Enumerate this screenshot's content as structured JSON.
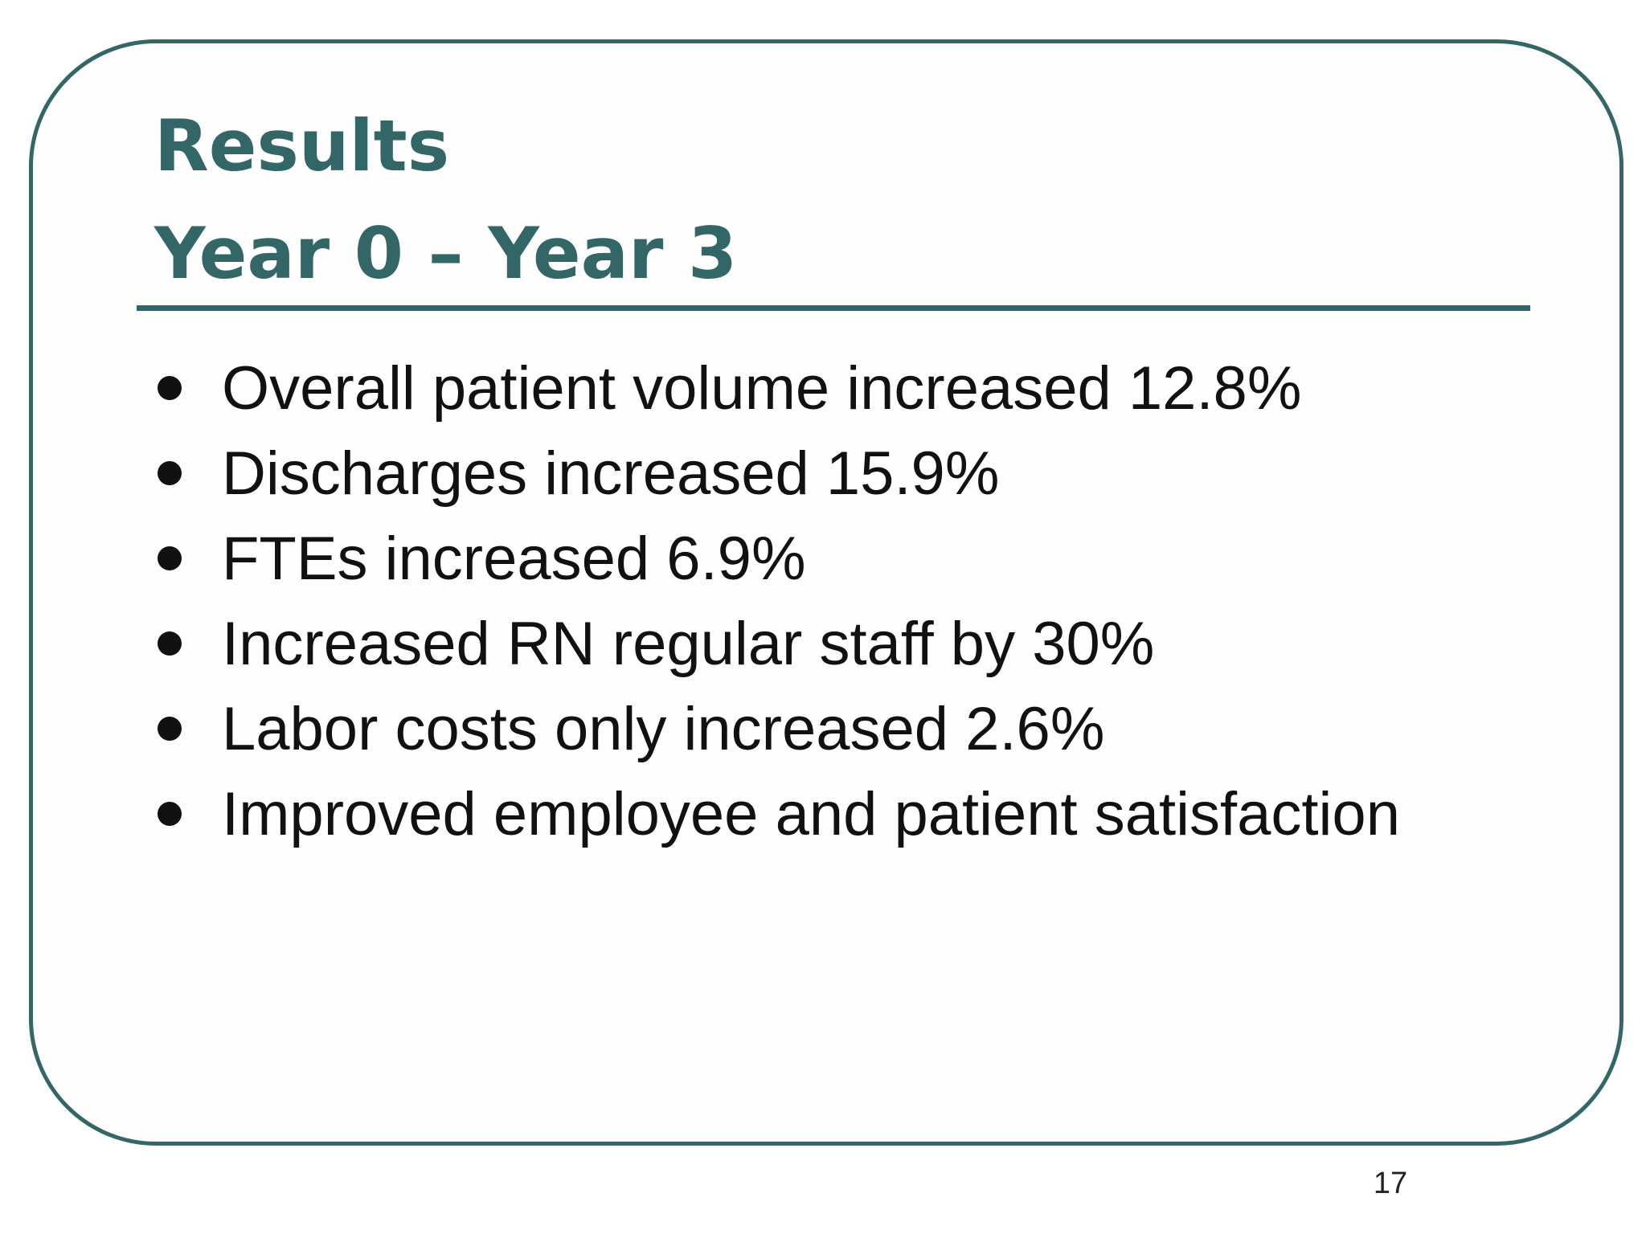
{
  "slide": {
    "title_line1": "Results",
    "title_line2": "Year 0 – Year 3",
    "bullets": [
      "Overall patient volume increased 12.8%",
      "Discharges increased 15.9%",
      "FTEs increased 6.9%",
      "Increased RN regular staff by 30%",
      "Labor costs only increased 2.6%",
      "Improved employee and patient satisfaction"
    ],
    "page_number": "17"
  },
  "colors": {
    "accent": "#336666",
    "text": "#111111",
    "background": "#ffffff"
  },
  "icons": {
    "bullet": "filled-circle-bullet"
  }
}
